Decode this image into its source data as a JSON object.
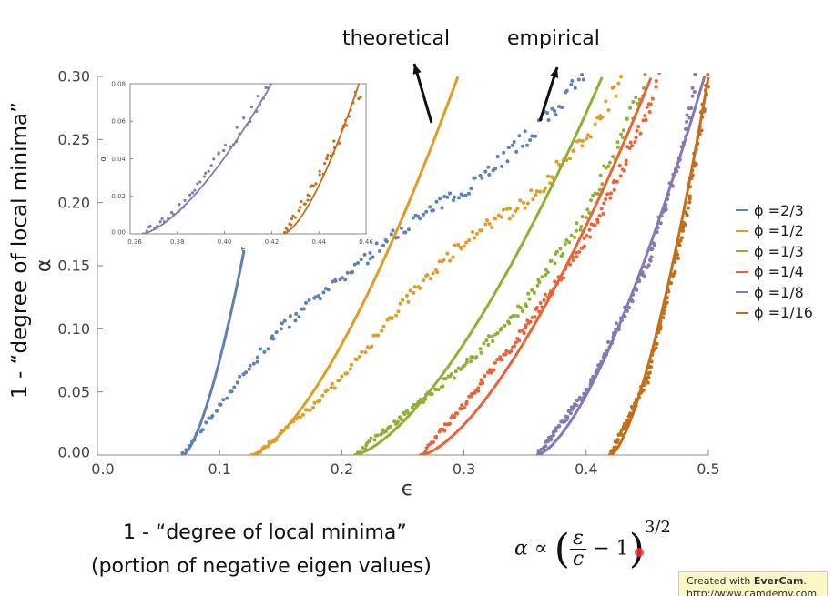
{
  "annotations": {
    "theoretical": "theoretical",
    "empirical": "empirical"
  },
  "ylabel_outer": "1 - “degree of local minima”",
  "bottom": {
    "line1": "1 - “degree of local minima”",
    "line2": "(portion of negative eigen values)"
  },
  "formula": {
    "lhs": "α ∝",
    "num": "ε",
    "den": "c",
    "rest": "− 1",
    "exp": "3/2"
  },
  "watermark": {
    "prefix": "Created with ",
    "brand": "EverCam",
    "suffix": ".",
    "url": "http://www.camdemy.com"
  },
  "chart_data": [
    {
      "type": "scatter",
      "xlabel": "ϵ",
      "ylabel": "α",
      "xlim": [
        0,
        0.5
      ],
      "ylim": [
        0,
        0.3
      ],
      "xticks": [
        "0.0",
        "0.1",
        "0.2",
        "0.3",
        "0.4",
        "0.5"
      ],
      "yticks": [
        "0.00",
        "0.05",
        "0.10",
        "0.15",
        "0.20",
        "0.25",
        "0.30"
      ],
      "legend_position": "right",
      "series": [
        {
          "name": "ϕ =2/3",
          "color": "#5e81b5",
          "theory": {
            "c": 0.07,
            "k": 0.268,
            "xmax": 0.12
          },
          "empirical": [
            [
              0.07,
              0
            ],
            [
              0.1,
              0.04
            ],
            [
              0.15,
              0.1
            ],
            [
              0.2,
              0.14
            ],
            [
              0.25,
              0.18
            ],
            [
              0.3,
              0.21
            ],
            [
              0.35,
              0.25
            ],
            [
              0.4,
              0.3
            ]
          ]
        },
        {
          "name": "ϕ =1/2",
          "color": "#e19c24",
          "theory": {
            "c": 0.125,
            "k": 0.189,
            "xmax": 0.295
          },
          "empirical": [
            [
              0.13,
              0
            ],
            [
              0.2,
              0.06
            ],
            [
              0.25,
              0.12
            ],
            [
              0.3,
              0.17
            ],
            [
              0.35,
              0.2
            ],
            [
              0.4,
              0.25
            ],
            [
              0.43,
              0.3
            ]
          ]
        },
        {
          "name": "ϕ =1/3",
          "color": "#8fb032",
          "theory": {
            "c": 0.21,
            "k": 0.315,
            "xmax": 0.413
          },
          "empirical": [
            [
              0.21,
              0
            ],
            [
              0.3,
              0.07
            ],
            [
              0.35,
              0.12
            ],
            [
              0.4,
              0.19
            ],
            [
              0.45,
              0.3
            ]
          ]
        },
        {
          "name": "ϕ =1/4",
          "color": "#eb6235",
          "theory": {
            "c": 0.265,
            "k": 0.5,
            "xmax": 0.453
          },
          "empirical": [
            [
              0.265,
              0
            ],
            [
              0.3,
              0.04
            ],
            [
              0.35,
              0.1
            ],
            [
              0.4,
              0.17
            ],
            [
              0.45,
              0.27
            ],
            [
              0.46,
              0.3
            ]
          ]
        },
        {
          "name": "ϕ =1/8",
          "color": "#8778b3",
          "theory": {
            "c": 0.36,
            "k": 1.28,
            "xmax": 0.497
          },
          "empirical": [
            [
              0.36,
              0
            ],
            [
              0.4,
              0.05
            ],
            [
              0.45,
              0.15
            ],
            [
              0.48,
              0.25
            ],
            [
              0.49,
              0.3
            ]
          ]
        },
        {
          "name": "ϕ =1/16",
          "color": "#c56e1a",
          "theory": {
            "c": 0.42,
            "k": 3.6,
            "xmax": 0.5
          },
          "empirical": [
            [
              0.42,
              0
            ],
            [
              0.45,
              0.06
            ],
            [
              0.48,
              0.18
            ],
            [
              0.5,
              0.3
            ]
          ]
        }
      ]
    },
    {
      "type": "scatter",
      "xlabel": "ϵ",
      "ylabel": "α",
      "xlim": [
        0.36,
        0.46
      ],
      "ylim": [
        0,
        0.08
      ],
      "xticks": [
        "0.36",
        "0.38",
        "0.40",
        "0.42",
        "0.44",
        "0.46"
      ],
      "yticks": [
        "0.00",
        "0.02",
        "0.04",
        "0.06",
        "0.08"
      ],
      "series": [
        {
          "color": "#8778b3",
          "theory": {
            "c": 0.365,
            "k": 1.37,
            "xmax": 0.42
          },
          "empirical": [
            [
              0.365,
              0
            ],
            [
              0.38,
              0.012
            ],
            [
              0.4,
              0.045
            ],
            [
              0.42,
              0.08
            ]
          ]
        },
        {
          "color": "#c56e1a",
          "theory": {
            "c": 0.425,
            "k": 3.87,
            "xmax": 0.457
          },
          "empirical": [
            [
              0.425,
              0
            ],
            [
              0.44,
              0.03
            ],
            [
              0.45,
              0.055
            ],
            [
              0.458,
              0.08
            ]
          ]
        }
      ]
    }
  ]
}
